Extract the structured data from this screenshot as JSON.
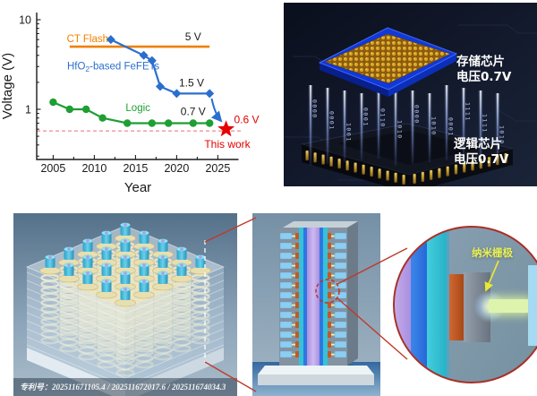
{
  "chart_data": {
    "type": "line",
    "title": "",
    "xlabel": "Year",
    "ylabel": "Voltage (V)",
    "y_scale": "log",
    "xlim": [
      2003,
      2027.5
    ],
    "ylim": [
      0.28,
      12
    ],
    "xticks": [
      "2005",
      "2010",
      "2015",
      "2020",
      "2025"
    ],
    "yticks": [
      "10",
      "1"
    ],
    "grid": false,
    "legend_position": "inline-labels",
    "series": [
      {
        "name": "CT Flash",
        "type": "hline",
        "y": 5,
        "x_start": 2007,
        "x_end": 2024,
        "color": "#f08000",
        "annotation": "5 V"
      },
      {
        "name": "HfO2-based FeFETs",
        "label_parts": [
          {
            "t": "HfO"
          },
          {
            "t": "2",
            "sub": true
          },
          {
            "t": "-based FeFETs"
          }
        ],
        "type": "line",
        "marker": "diamond",
        "color": "#2b6fce",
        "x": [
          2012,
          2016,
          2017,
          2018,
          2020,
          2024
        ],
        "y": [
          6,
          4,
          3.5,
          1.8,
          1.5,
          1.5
        ],
        "annotation": "1.5 V"
      },
      {
        "name": "Logic",
        "type": "line",
        "marker": "circle",
        "color": "#1f9e33",
        "x": [
          2005,
          2007,
          2009,
          2011,
          2014,
          2017,
          2019,
          2022,
          2024
        ],
        "y": [
          1.2,
          1.0,
          1.0,
          0.8,
          0.7,
          0.7,
          0.7,
          0.7,
          0.7
        ],
        "annotation": "0.7 V"
      },
      {
        "name": "This work",
        "type": "point",
        "marker": "star",
        "color": "#e60000",
        "x": [
          2026
        ],
        "y": [
          0.6
        ],
        "annotation": "0.6 V",
        "label": "This work"
      }
    ],
    "reference_line": {
      "y": 0.6,
      "color": "#e87070",
      "style": "dashed"
    }
  },
  "chip_render": {
    "memory_label_line1": "存储芯片",
    "memory_label_line2": "电压0.7V",
    "logic_label_line1": "逻辑芯片",
    "logic_label_line2": "电压0.7V",
    "binary_streams": [
      "0000",
      "0001",
      "1001",
      "0001",
      "0110",
      "1010",
      "0000",
      "1010",
      "0001",
      "1111",
      "1111",
      "1010"
    ]
  },
  "array_render": {
    "patent_caption": "专利号：202511671105.4 / 202511672017.6 / 202511674034.3"
  },
  "gate_render": {
    "label": "纳米栅极"
  }
}
